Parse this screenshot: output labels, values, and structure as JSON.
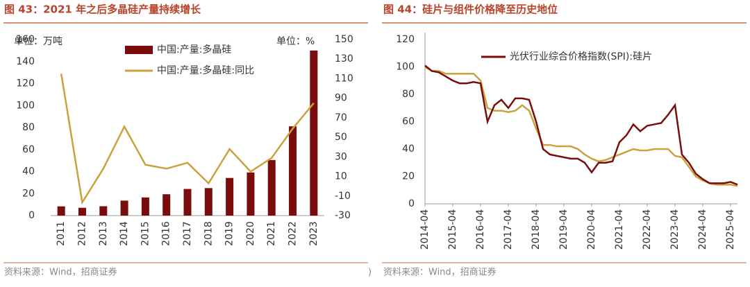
{
  "chart_data": [
    {
      "type": "bar_line",
      "title": "图 43：2021 年之后多晶硅产量持续增长",
      "y_unit": "单位：万吨",
      "y2_unit": "单位：%",
      "source": "资料来源：Wind，招商证券",
      "edge_mark": ")",
      "categories": [
        "2011",
        "2012",
        "2013",
        "2014",
        "2015",
        "2016",
        "2017",
        "2018",
        "2019",
        "2020",
        "2021",
        "2022",
        "2023"
      ],
      "series": [
        {
          "name": "中国:产量:多晶硅",
          "color": "#7a0c0c",
          "kind": "bar",
          "values": [
            8.4,
            7.1,
            8.5,
            13.6,
            16.5,
            19.4,
            24.2,
            25.0,
            34.2,
            39.2,
            50.5,
            81.1,
            150
          ]
        },
        {
          "name": "中国:产量:多晶硅:同比",
          "color": "#c8a23c",
          "kind": "line",
          "axis": "y2",
          "values": [
            115,
            -16.5,
            18,
            61,
            22,
            18,
            24,
            3,
            38,
            15,
            29,
            59,
            85
          ]
        }
      ],
      "ylim": [
        0,
        160
      ],
      "yticks": [
        0,
        20,
        40,
        60,
        80,
        100,
        120,
        140,
        160
      ],
      "y2lim": [
        -30,
        150
      ],
      "y2ticks": [
        -30,
        -10,
        10,
        30,
        50,
        70,
        90,
        110,
        130,
        150
      ]
    },
    {
      "type": "line",
      "title": "图 44：硅片与组件价格降至历史地位",
      "source": "资料来源：Wind，招商证券",
      "x": [
        "2014-04",
        "2014-07",
        "2014-10",
        "2015-01",
        "2015-04",
        "2015-07",
        "2015-10",
        "2016-01",
        "2016-04",
        "2016-07",
        "2016-10",
        "2017-01",
        "2017-04",
        "2017-07",
        "2017-10",
        "2018-01",
        "2018-04",
        "2018-07",
        "2018-10",
        "2019-01",
        "2019-04",
        "2019-07",
        "2019-10",
        "2020-01",
        "2020-04",
        "2020-07",
        "2020-10",
        "2021-01",
        "2021-04",
        "2021-07",
        "2021-10",
        "2022-01",
        "2022-04",
        "2022-07",
        "2022-10",
        "2023-01",
        "2023-04",
        "2023-07",
        "2023-10",
        "2024-01",
        "2024-04",
        "2024-07",
        "2024-10",
        "2025-01",
        "2025-04",
        "2025-07"
      ],
      "series": [
        {
          "name": "光伏行业综合价格指数(SPI):硅片",
          "color": "#7a0c0c",
          "values": [
            101,
            97,
            96,
            93,
            90,
            88,
            88,
            89,
            88,
            60,
            72,
            76,
            70,
            77,
            77,
            76,
            60,
            40,
            36,
            35,
            34,
            33,
            33,
            30,
            23,
            30,
            30,
            31,
            45,
            50,
            58,
            53,
            57,
            58,
            59,
            65,
            72,
            36,
            30,
            22,
            18,
            15,
            15,
            15,
            16,
            14
          ]
        },
        {
          "color": "#c8a23c",
          "values": [
            100,
            97,
            97,
            95,
            95,
            95,
            95,
            95,
            90,
            70,
            68,
            68,
            67,
            68,
            72,
            68,
            55,
            43,
            43,
            42,
            42,
            42,
            40,
            36,
            33,
            31,
            32,
            34,
            36,
            38,
            40,
            39,
            39,
            40,
            40,
            40,
            35,
            34,
            27,
            20,
            17,
            15,
            14,
            14,
            14,
            13
          ]
        }
      ],
      "xlim": [
        "2014-04",
        "2025-07"
      ],
      "xticks": [
        "2014-04",
        "2015-04",
        "2016-04",
        "2017-04",
        "2018-04",
        "2019-04",
        "2020-04",
        "2021-04",
        "2022-04",
        "2023-04",
        "2024-04",
        "2025-04"
      ],
      "ylim": [
        0,
        120
      ],
      "yticks": [
        0,
        20,
        40,
        60,
        80,
        100,
        120
      ]
    }
  ]
}
